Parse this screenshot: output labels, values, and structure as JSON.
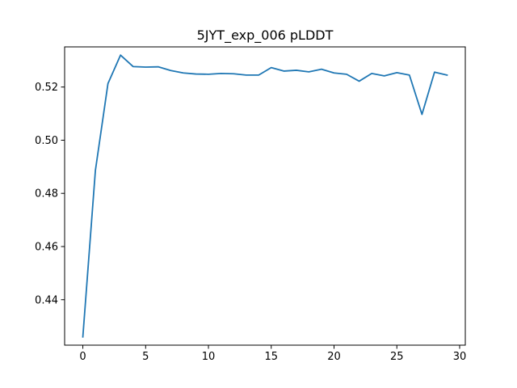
{
  "chart_data": {
    "type": "line",
    "title": "5JYT_exp_006 pLDDT",
    "xlabel": "",
    "ylabel": "",
    "xlim": [
      -1.45,
      30.45
    ],
    "ylim": [
      0.4229,
      0.5351
    ],
    "xticks": [
      0,
      5,
      10,
      15,
      20,
      25,
      30
    ],
    "yticks": [
      0.44,
      0.46,
      0.48,
      0.5,
      0.52
    ],
    "ytick_labels": [
      "0.44",
      "0.46",
      "0.48",
      "0.50",
      "0.52"
    ],
    "grid": false,
    "series": [
      {
        "color": "#1f77b4",
        "x": [
          0,
          1,
          2,
          3,
          4,
          5,
          6,
          7,
          8,
          9,
          10,
          11,
          12,
          13,
          14,
          15,
          16,
          17,
          18,
          19,
          20,
          21,
          22,
          23,
          24,
          25,
          26,
          27,
          28,
          29
        ],
        "y": [
          0.426,
          0.4886,
          0.5213,
          0.532,
          0.5277,
          0.5275,
          0.5276,
          0.5262,
          0.5253,
          0.5249,
          0.5248,
          0.5251,
          0.525,
          0.5245,
          0.5245,
          0.5273,
          0.526,
          0.5263,
          0.5257,
          0.5267,
          0.5253,
          0.5248,
          0.5222,
          0.5251,
          0.5242,
          0.5254,
          0.5245,
          0.5097,
          0.5256,
          0.5245
        ]
      }
    ]
  }
}
